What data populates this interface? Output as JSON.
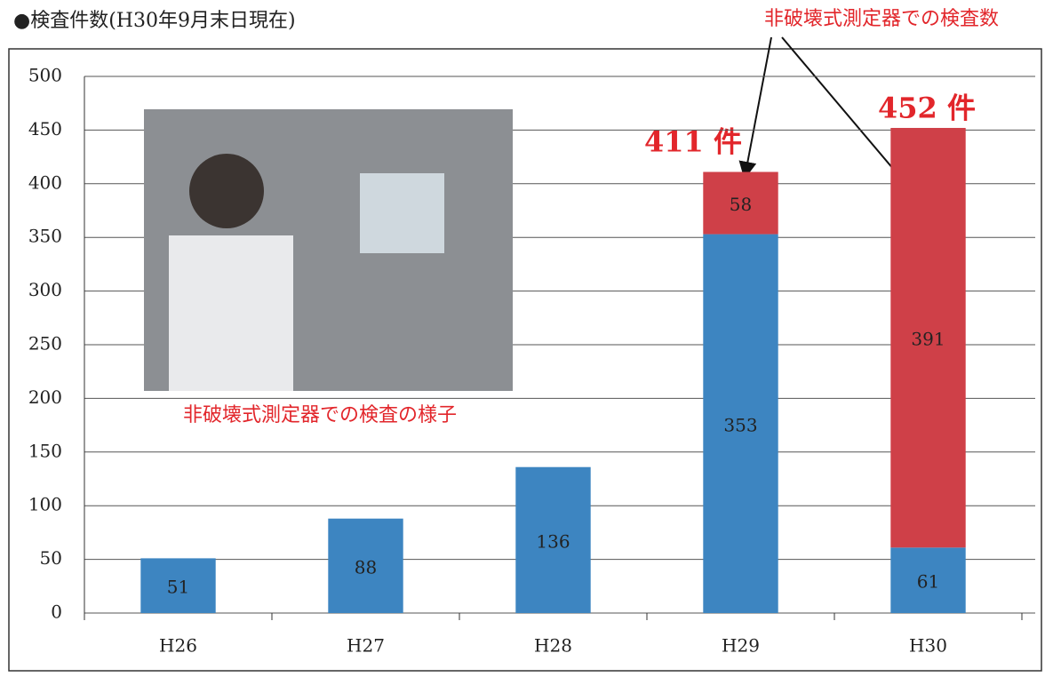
{
  "chart_data": {
    "type": "bar",
    "stacked": true,
    "title": "●検査件数(H30年9月末日現在)",
    "annotations": [
      "非破壊式測定器での検査数",
      "411 件",
      "452 件",
      "非破壊式測定器での検査の様子"
    ],
    "categories": [
      "H26",
      "H27",
      "H28",
      "H29",
      "H30"
    ],
    "series": [
      {
        "color": "#3d85c1",
        "values": [
          51,
          88,
          136,
          353,
          61
        ]
      },
      {
        "color": "#cf4048",
        "values": [
          null,
          null,
          null,
          58,
          391
        ]
      }
    ],
    "ylim": [
      0,
      500
    ],
    "yticks": [
      0,
      50,
      100,
      150,
      200,
      250,
      300,
      350,
      400,
      450,
      500
    ],
    "grid": true
  }
}
